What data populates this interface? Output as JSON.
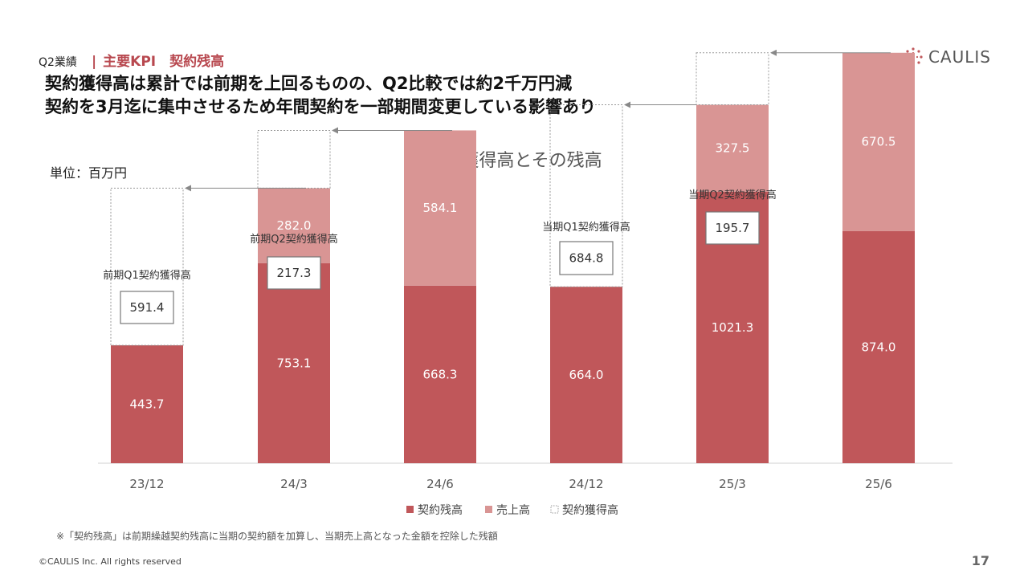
{
  "header": {
    "section": "Q2業績",
    "separator": "|",
    "title": "主要KPI　契約残高",
    "logo_text": "CAULIS"
  },
  "headline": {
    "line1": "契約獲得高は累計では前期を上回るものの、Q2比較では約2千万円減",
    "line2": "契約を3月迄に集中させるため年間契約を一部期間変更している影響あり"
  },
  "unit_label": "単位：百万円",
  "colors": {
    "balance": "#c0575a",
    "sales": "#d99594",
    "accent": "#b8484f",
    "acquisition_border": "#888888"
  },
  "chart_data": {
    "type": "bar",
    "title": "契約獲得高とその残高",
    "categories": [
      "23/12",
      "24/3",
      "24/6",
      "24/12",
      "25/3",
      "25/6"
    ],
    "series": [
      {
        "name": "契約残高",
        "values": [
          443.7,
          753.1,
          668.3,
          664.0,
          1021.3,
          874.0
        ]
      },
      {
        "name": "売上高",
        "values": [
          null,
          282.0,
          584.1,
          null,
          327.5,
          670.5
        ]
      },
      {
        "name": "契約獲得高",
        "values": [
          591.4,
          217.3,
          null,
          684.8,
          195.7,
          null
        ]
      }
    ],
    "annotations": [
      "前期Q1契約獲得高",
      "前期Q2契約獲得高",
      "当期Q1契約獲得高",
      "当期Q2契約獲得高"
    ],
    "legend_position": "bottom",
    "grid": false,
    "ylim": [
      0,
      1400
    ]
  },
  "footnote": "※「契約残高」は前期繰越契約残高に当期の契約額を加算し、当期売上高となった金額を控除した残額",
  "copyright": "©CAULIS Inc. All rights reserved",
  "page_number": "17"
}
